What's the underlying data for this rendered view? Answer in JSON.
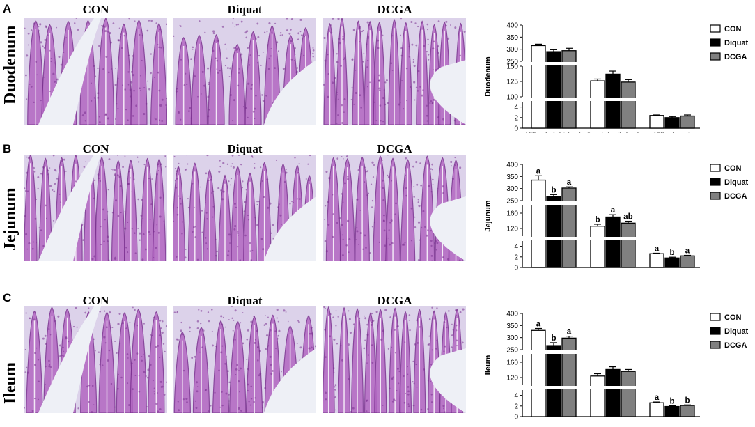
{
  "figure": {
    "panels": [
      {
        "id": "A",
        "letter": "A",
        "row_label": "Duodenum",
        "image_titles": [
          "CON",
          "Diquat",
          "DCGA"
        ],
        "image_subjects": [
          "duodenum-con",
          "duodenum-diquat",
          "duodenum-dcga"
        ]
      },
      {
        "id": "B",
        "letter": "B",
        "row_label": "Jejunum",
        "image_titles": [
          "CON",
          "Diquat",
          "DCGA"
        ],
        "image_subjects": [
          "jejunum-con",
          "jejunum-diquat",
          "jejunum-dcga"
        ]
      },
      {
        "id": "C",
        "letter": "C",
        "row_label": "Ileum",
        "image_titles": [
          "CON",
          "Diquat",
          "DCGA"
        ],
        "image_subjects": [
          "ileum-con",
          "ileum-diquat",
          "ileum-dcga"
        ]
      }
    ],
    "colors": {
      "stain_bg": "#dcd2ea",
      "stain_tissue": "#b266c2",
      "stain_dark": "#7a2f8f",
      "lumen": "#eef0f6",
      "con_fill": "#ffffff",
      "diquat_fill": "#000000",
      "dcga_fill": "#808080"
    }
  },
  "chart_data": [
    {
      "type": "bar",
      "panel": "A",
      "ylabel": "Duodenum",
      "categories": [
        "Villus height (um)",
        "Crypt depth (um)",
        "Villus/crypt"
      ],
      "legend": [
        "CON",
        "Diquat",
        "DCGA"
      ],
      "legend_position": "right",
      "broken_axis": true,
      "segments": [
        {
          "ylim": [
            250,
            400
          ],
          "ticks": [
            "250",
            "300",
            "350",
            "400"
          ]
        },
        {
          "ylim": [
            100,
            150
          ],
          "ticks": [
            "100",
            "125",
            "150"
          ]
        },
        {
          "ylim": [
            0,
            5
          ],
          "ticks": [
            "0",
            "2",
            "4"
          ]
        }
      ],
      "series": [
        {
          "name": "CON",
          "values": [
            315,
            126,
            2.4
          ],
          "errors": [
            6,
            3,
            0.1
          ]
        },
        {
          "name": "Diquat",
          "values": [
            290,
            137,
            2.0
          ],
          "errors": [
            8,
            5,
            0.2
          ]
        },
        {
          "name": "DCGA",
          "values": [
            294,
            124,
            2.3
          ],
          "errors": [
            10,
            4,
            0.2
          ]
        }
      ],
      "significance": [
        [
          "",
          "",
          ""
        ],
        [
          "",
          "",
          ""
        ],
        [
          "",
          "",
          ""
        ]
      ]
    },
    {
      "type": "bar",
      "panel": "B",
      "ylabel": "Jejunum",
      "categories": [
        "Villus height (um)",
        "Crypt depth (um)",
        "Villus/crypt"
      ],
      "legend": [
        "CON",
        "Diquat",
        "DCGA"
      ],
      "legend_position": "right",
      "broken_axis": true,
      "segments": [
        {
          "ylim": [
            250,
            400
          ],
          "ticks": [
            "250",
            "300",
            "350",
            "400"
          ]
        },
        {
          "ylim": [
            100,
            180
          ],
          "ticks": [
            "120",
            "160"
          ]
        },
        {
          "ylim": [
            0,
            5
          ],
          "ticks": [
            "0",
            "2",
            "4"
          ]
        }
      ],
      "series": [
        {
          "name": "CON",
          "values": [
            335,
            126,
            2.6
          ],
          "errors": [
            18,
            5,
            0.1
          ]
        },
        {
          "name": "Diquat",
          "values": [
            267,
            150,
            1.8
          ],
          "errors": [
            8,
            6,
            0.15
          ]
        },
        {
          "name": "DCGA",
          "values": [
            302,
            134,
            2.2
          ],
          "errors": [
            5,
            5,
            0.1
          ]
        }
      ],
      "significance": [
        [
          "a",
          "b",
          "a"
        ],
        [
          "b",
          "a",
          "ab"
        ],
        [
          "a",
          "b",
          "a"
        ]
      ]
    },
    {
      "type": "bar",
      "panel": "C",
      "ylabel": "Ileum",
      "categories": [
        "Villus height (um)",
        "Crypt depth (um)",
        "Villus/crypt"
      ],
      "legend": [
        "CON",
        "Diquat",
        "DCGA"
      ],
      "legend_position": "right",
      "broken_axis": true,
      "segments": [
        {
          "ylim": [
            250,
            400
          ],
          "ticks": [
            "250",
            "300",
            "350",
            "400"
          ]
        },
        {
          "ylim": [
            100,
            180
          ],
          "ticks": [
            "120",
            "160"
          ]
        },
        {
          "ylim": [
            0,
            5
          ],
          "ticks": [
            "0",
            "2",
            "4"
          ]
        }
      ],
      "series": [
        {
          "name": "CON",
          "values": [
            330,
            124,
            2.6
          ],
          "errors": [
            8,
            6,
            0.15
          ]
        },
        {
          "name": "Diquat",
          "values": [
            267,
            141,
            1.9
          ],
          "errors": [
            12,
            7,
            0.15
          ]
        },
        {
          "name": "DCGA",
          "values": [
            298,
            136,
            2.1
          ],
          "errors": [
            8,
            5,
            0.1
          ]
        }
      ],
      "significance": [
        [
          "a",
          "b",
          "a"
        ],
        [
          "",
          "",
          ""
        ],
        [
          "a",
          "b",
          "b"
        ]
      ]
    }
  ]
}
